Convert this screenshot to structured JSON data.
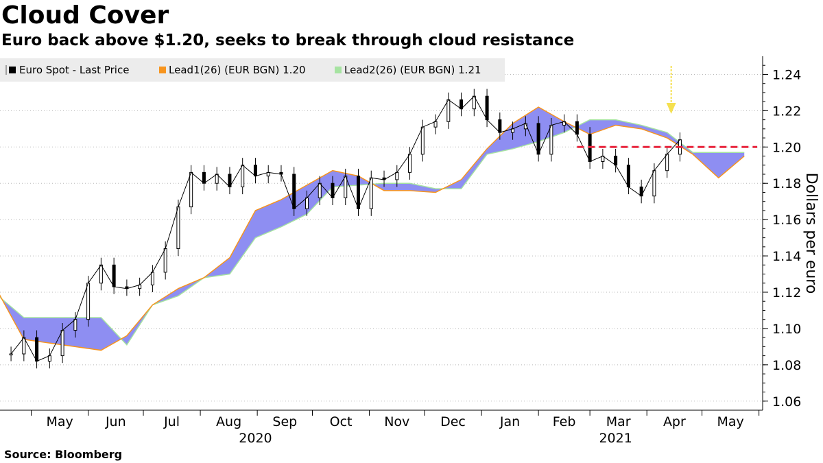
{
  "title": "Cloud Cover",
  "subtitle": "Euro back above $1.20, seeks to break through cloud resistance",
  "source": "Source: Bloomberg",
  "legend": [
    {
      "label": "Euro Spot - Last Price",
      "color": "#000000",
      "icon": "candlestick-icon"
    },
    {
      "label": "Lead1(26) (EUR BGN) 1.20",
      "color": "#f7941d"
    },
    {
      "label": "Lead2(26) (EUR BGN) 1.21",
      "color": "#a6e3a1"
    }
  ],
  "colors": {
    "cloud_fill": "#8e8ef2",
    "lead1": "#f7941d",
    "lead2": "#a6e3a1",
    "resistance_line": "#e8243c",
    "arrow": "#f5e050",
    "grid": "#b8b8b8"
  },
  "chart_data": {
    "type": "line",
    "title": "Cloud Cover",
    "subtitle": "Euro back above $1.20, seeks to break through cloud resistance",
    "ylabel": "Dollars per euro",
    "ylim": [
      1.055,
      1.25
    ],
    "yticks": [
      "1.06",
      "1.08",
      "1.10",
      "1.12",
      "1.14",
      "1.16",
      "1.18",
      "1.20",
      "1.22",
      "1.24"
    ],
    "x_axis": {
      "months": [
        "May",
        "Jun",
        "Jul",
        "Aug",
        "Sep",
        "Oct",
        "Nov",
        "Dec",
        "Jan",
        "Feb",
        "Mar",
        "Apr",
        "May"
      ],
      "years": [
        "2020",
        "2021"
      ]
    },
    "grid": "horizontal dotted",
    "legend_position": "top-left",
    "series": [
      {
        "name": "Euro Spot - Last Price",
        "x": [
          "2020-04-20",
          "2020-04-27",
          "2020-05-04",
          "2020-05-11",
          "2020-05-18",
          "2020-05-25",
          "2020-06-01",
          "2020-06-08",
          "2020-06-15",
          "2020-06-22",
          "2020-06-29",
          "2020-07-06",
          "2020-07-13",
          "2020-07-20",
          "2020-07-27",
          "2020-08-03",
          "2020-08-10",
          "2020-08-17",
          "2020-08-24",
          "2020-08-31",
          "2020-09-07",
          "2020-09-14",
          "2020-09-21",
          "2020-09-28",
          "2020-10-05",
          "2020-10-12",
          "2020-10-19",
          "2020-10-26",
          "2020-11-02",
          "2020-11-09",
          "2020-11-16",
          "2020-11-23",
          "2020-11-30",
          "2020-12-07",
          "2020-12-14",
          "2020-12-21",
          "2020-12-28",
          "2021-01-04",
          "2021-01-11",
          "2021-01-18",
          "2021-01-25",
          "2021-02-01",
          "2021-02-08",
          "2021-02-15",
          "2021-02-22",
          "2021-03-01",
          "2021-03-08",
          "2021-03-15",
          "2021-03-22",
          "2021-03-29",
          "2021-04-05",
          "2021-04-12",
          "2021-04-19"
        ],
        "values": [
          1.086,
          1.095,
          1.082,
          1.085,
          1.099,
          1.105,
          1.125,
          1.135,
          1.123,
          1.122,
          1.124,
          1.131,
          1.144,
          1.167,
          1.186,
          1.18,
          1.185,
          1.178,
          1.19,
          1.184,
          1.186,
          1.185,
          1.166,
          1.172,
          1.18,
          1.172,
          1.184,
          1.166,
          1.183,
          1.182,
          1.186,
          1.196,
          1.211,
          1.214,
          1.226,
          1.221,
          1.228,
          1.215,
          1.208,
          1.21,
          1.213,
          1.196,
          1.212,
          1.214,
          1.207,
          1.192,
          1.195,
          1.19,
          1.178,
          1.173,
          1.187,
          1.196,
          1.204
        ]
      },
      {
        "name": "Lead1(26) (EUR BGN) 1.20",
        "x": [
          "2020-04-13",
          "2020-04-27",
          "2020-05-11",
          "2020-05-25",
          "2020-06-08",
          "2020-06-22",
          "2020-07-06",
          "2020-07-20",
          "2020-08-03",
          "2020-08-17",
          "2020-08-31",
          "2020-09-14",
          "2020-09-28",
          "2020-10-12",
          "2020-10-26",
          "2020-11-09",
          "2020-11-23",
          "2020-12-07",
          "2020-12-21",
          "2021-01-04",
          "2021-01-18",
          "2021-02-01",
          "2021-02-15",
          "2021-03-01",
          "2021-03-15",
          "2021-03-29",
          "2021-04-12",
          "2021-04-26",
          "2021-05-10",
          "2021-05-24"
        ],
        "values": [
          1.12,
          1.094,
          1.092,
          1.09,
          1.088,
          1.096,
          1.113,
          1.122,
          1.128,
          1.139,
          1.165,
          1.171,
          1.179,
          1.187,
          1.184,
          1.176,
          1.176,
          1.175,
          1.182,
          1.199,
          1.213,
          1.222,
          1.214,
          1.207,
          1.212,
          1.21,
          1.205,
          1.196,
          1.183,
          1.195
        ]
      },
      {
        "name": "Lead2(26) (EUR BGN) 1.21",
        "x": [
          "2020-04-13",
          "2020-04-27",
          "2020-05-11",
          "2020-05-25",
          "2020-06-08",
          "2020-06-22",
          "2020-07-06",
          "2020-07-20",
          "2020-08-03",
          "2020-08-17",
          "2020-08-31",
          "2020-09-14",
          "2020-09-28",
          "2020-10-12",
          "2020-10-26",
          "2020-11-09",
          "2020-11-23",
          "2020-12-07",
          "2020-12-21",
          "2021-01-04",
          "2021-01-18",
          "2021-02-01",
          "2021-02-15",
          "2021-03-01",
          "2021-03-15",
          "2021-03-29",
          "2021-04-12",
          "2021-04-26",
          "2021-05-10",
          "2021-05-24"
        ],
        "values": [
          1.118,
          1.106,
          1.106,
          1.106,
          1.106,
          1.091,
          1.113,
          1.118,
          1.128,
          1.13,
          1.15,
          1.156,
          1.163,
          1.178,
          1.179,
          1.18,
          1.18,
          1.177,
          1.177,
          1.196,
          1.199,
          1.203,
          1.208,
          1.215,
          1.215,
          1.212,
          1.208,
          1.197,
          1.197,
          1.197
        ]
      }
    ],
    "annotations": [
      {
        "type": "horizontal-line",
        "value": 1.2,
        "style": "dashed",
        "color": "#e8243c",
        "from": "2021-02-22",
        "to": "2021-05-31"
      },
      {
        "type": "arrow",
        "direction": "down",
        "at": "2021-04-12",
        "color": "#f5e050"
      }
    ]
  }
}
